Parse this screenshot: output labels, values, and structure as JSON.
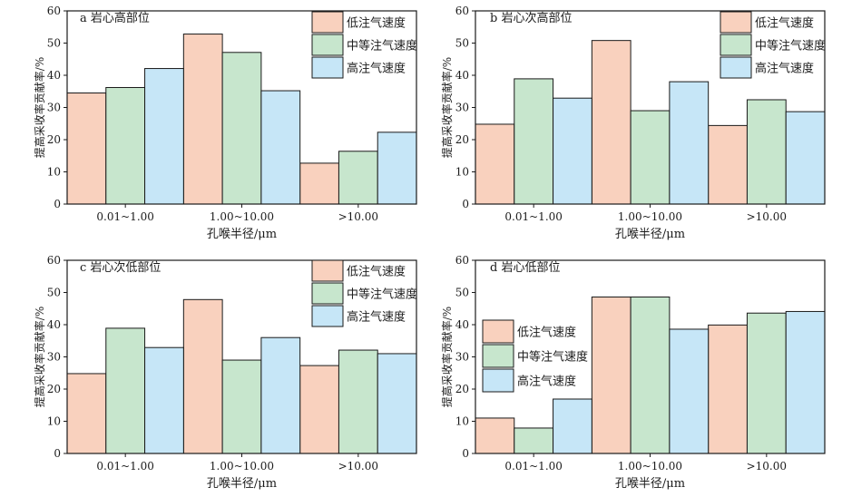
{
  "colors": {
    "low": "#F9D1BE",
    "medium": "#C7E6CD",
    "high": "#C6E6F7",
    "stroke": "#1a1a1a"
  },
  "chart_data": [
    {
      "type": "bar",
      "title": "a 岩心高部位",
      "categories": [
        "0.01~1.00",
        "1.00~10.00",
        ">10.00"
      ],
      "series": [
        {
          "name": "低注气速度",
          "values": [
            34.5,
            52.8,
            12.7
          ]
        },
        {
          "name": "中等注气速度",
          "values": [
            36.2,
            47.1,
            16.4
          ]
        },
        {
          "name": "高注气速度",
          "values": [
            42.1,
            35.2,
            22.3
          ]
        }
      ],
      "xlabel": "孔喉半径/μm",
      "ylabel": "提高采收率贡献率/%",
      "ylim": [
        0,
        60
      ],
      "yticks": [
        "0",
        "10",
        "20",
        "30",
        "40",
        "50",
        "60"
      ],
      "legend": "top-right"
    },
    {
      "type": "bar",
      "title": "b 岩心次高部位",
      "categories": [
        "0.01~1.00",
        "1.00~10.00",
        ">10.00"
      ],
      "series": [
        {
          "name": "低注气速度",
          "values": [
            24.8,
            50.8,
            24.4
          ]
        },
        {
          "name": "中等注气速度",
          "values": [
            38.9,
            29.0,
            32.4
          ]
        },
        {
          "name": "高注气速度",
          "values": [
            32.9,
            38.0,
            28.7
          ]
        }
      ],
      "xlabel": "孔喉半径/μm",
      "ylabel": "提高采收率贡献率/%",
      "ylim": [
        0,
        60
      ],
      "yticks": [
        "0",
        "10",
        "20",
        "30",
        "40",
        "50",
        "60"
      ],
      "legend": "top-right"
    },
    {
      "type": "bar",
      "title": "c 岩心次低部位",
      "categories": [
        "0.01~1.00",
        "1.00~10.00",
        ">10.00"
      ],
      "series": [
        {
          "name": "低注气速度",
          "values": [
            24.8,
            47.8,
            27.3
          ]
        },
        {
          "name": "中等注气速度",
          "values": [
            38.9,
            29.0,
            32.1
          ]
        },
        {
          "name": "高注气速度",
          "values": [
            32.9,
            36.0,
            31.0
          ]
        }
      ],
      "xlabel": "孔喉半径/μm",
      "ylabel": "提高采收率贡献率/%",
      "ylim": [
        0,
        60
      ],
      "yticks": [
        "0",
        "10",
        "20",
        "30",
        "40",
        "50",
        "60"
      ],
      "legend": "top-right"
    },
    {
      "type": "bar",
      "title": "d 岩心低部位",
      "categories": [
        "0.01~1.00",
        "1.00~10.00",
        ">10.00"
      ],
      "series": [
        {
          "name": "低注气速度",
          "values": [
            11.0,
            48.6,
            39.9
          ]
        },
        {
          "name": "中等注气速度",
          "values": [
            7.9,
            48.6,
            43.6
          ]
        },
        {
          "name": "高注气速度",
          "values": [
            16.9,
            38.6,
            44.1
          ]
        }
      ],
      "xlabel": "孔喉半径/μm",
      "ylabel": "提高采收率贡献率/%",
      "ylim": [
        0,
        60
      ],
      "yticks": [
        "0",
        "10",
        "20",
        "30",
        "40",
        "50",
        "60"
      ],
      "legend": "middle-left"
    }
  ]
}
